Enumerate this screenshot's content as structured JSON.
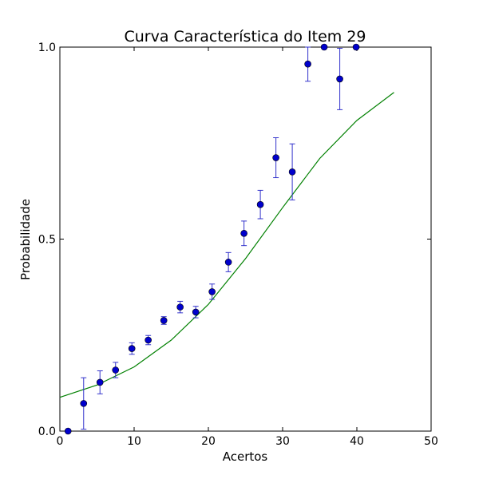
{
  "chart_data": {
    "type": "scatter",
    "title": "Curva Característica do Item 29",
    "xlabel": "Acertos",
    "ylabel": "Probabilidade",
    "xlim": [
      0,
      50
    ],
    "ylim": [
      0.0,
      1.0
    ],
    "x_ticks": [
      "0",
      "10",
      "20",
      "30",
      "40",
      "50"
    ],
    "y_ticks": [
      "0.0",
      "0.5",
      "1.0"
    ],
    "grid": false,
    "legend": "none",
    "colors": {
      "points": "#0000cc",
      "errorbars": "#3333cc",
      "curve": "#008000"
    },
    "series": [
      {
        "type": "errorbar",
        "x": [
          1.1,
          3.2,
          5.4,
          7.5,
          9.7,
          11.9,
          14.0,
          16.2,
          18.3,
          20.5,
          22.7,
          24.8,
          27.0,
          29.1,
          31.3,
          33.4,
          35.6,
          37.7,
          39.9
        ],
        "y": [
          0.0,
          0.072,
          0.127,
          0.159,
          0.215,
          0.237,
          0.288,
          0.323,
          0.31,
          0.363,
          0.44,
          0.515,
          0.59,
          0.712,
          0.675,
          0.956,
          1.0,
          0.917,
          1.0
        ],
        "err": [
          0.0,
          0.067,
          0.03,
          0.02,
          0.015,
          0.012,
          0.01,
          0.015,
          0.015,
          0.02,
          0.025,
          0.032,
          0.037,
          0.052,
          0.073,
          0.045,
          0.0,
          0.08,
          0.0
        ]
      },
      {
        "type": "line",
        "x": [
          0,
          5,
          10,
          15,
          20,
          25,
          30,
          35,
          40,
          45
        ],
        "y": [
          0.088,
          0.12,
          0.167,
          0.237,
          0.33,
          0.449,
          0.582,
          0.71,
          0.809,
          0.882
        ]
      }
    ]
  }
}
